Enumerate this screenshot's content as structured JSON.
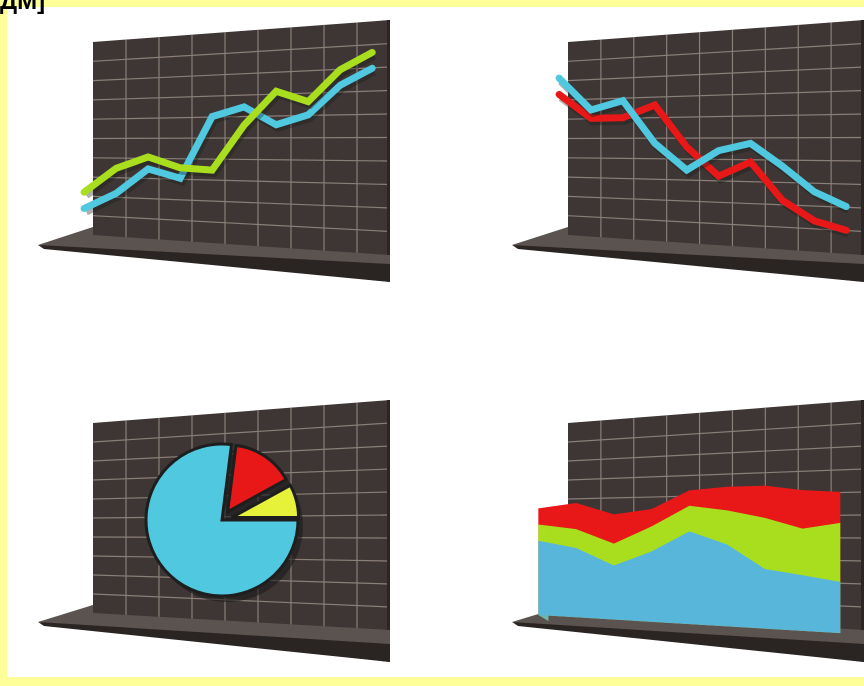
{
  "header": {
    "cut_text": "ДМ]"
  },
  "colors": {
    "wall": "#3d3634",
    "wall_side": "#2b2523",
    "grid": "#8a7e78",
    "floor": "#5a5350",
    "floor_edge": "#2a2422",
    "cyan": "#4fc8e0",
    "green": "#a8de1e",
    "red": "#e81818",
    "yellow": "#e6f23a",
    "blue_area": "#58b6da",
    "frame": "#ffff99"
  },
  "chart_data": [
    {
      "type": "line",
      "position": "top-left",
      "x": [
        0,
        1,
        2,
        3,
        4,
        5,
        6,
        7,
        8,
        9
      ],
      "xlim": [
        0,
        9
      ],
      "ylim": [
        0,
        10
      ],
      "series": [
        {
          "color": "cyan",
          "values": [
            1.0,
            2.0,
            3.5,
            3.0,
            6.5,
            7.0,
            6.0,
            6.5,
            8.0,
            8.8
          ]
        },
        {
          "color": "green",
          "values": [
            2.0,
            3.5,
            4.2,
            3.6,
            3.5,
            6.0,
            7.8,
            7.2,
            8.8,
            9.6
          ]
        }
      ]
    },
    {
      "type": "line",
      "position": "top-right",
      "x": [
        0,
        1,
        2,
        3,
        4,
        5,
        6,
        7,
        8,
        9
      ],
      "xlim": [
        0,
        9
      ],
      "ylim": [
        0,
        10
      ],
      "series": [
        {
          "color": "red",
          "values": [
            8.0,
            6.5,
            6.5,
            7.2,
            4.8,
            3.2,
            4.0,
            2.0,
            1.0,
            0.6
          ]
        },
        {
          "color": "cyan",
          "values": [
            9.0,
            7.0,
            7.5,
            5.0,
            3.5,
            4.6,
            5.0,
            3.8,
            2.5,
            1.8
          ]
        }
      ]
    },
    {
      "type": "pie",
      "position": "bottom-left",
      "slices": [
        {
          "color": "cyan",
          "value": 77
        },
        {
          "color": "red",
          "value": 15
        },
        {
          "color": "yellow",
          "value": 8
        }
      ]
    },
    {
      "type": "area",
      "position": "bottom-right",
      "x": [
        0,
        1,
        2,
        3,
        4,
        5,
        6,
        7,
        8
      ],
      "xlim": [
        0,
        8
      ],
      "ylim": [
        0,
        10
      ],
      "series": [
        {
          "color": "red",
          "values": [
            8.6,
            9.0,
            8.0,
            8.4,
            9.8,
            10.0,
            10.0,
            9.6,
            9.4
          ]
        },
        {
          "color": "green",
          "values": [
            7.2,
            6.8,
            5.6,
            7.0,
            8.6,
            8.2,
            7.6,
            6.8,
            7.2
          ]
        },
        {
          "color": "blue_area",
          "values": [
            5.8,
            5.2,
            3.8,
            5.0,
            6.6,
            5.6,
            3.8,
            3.4,
            3.0
          ]
        }
      ]
    }
  ]
}
